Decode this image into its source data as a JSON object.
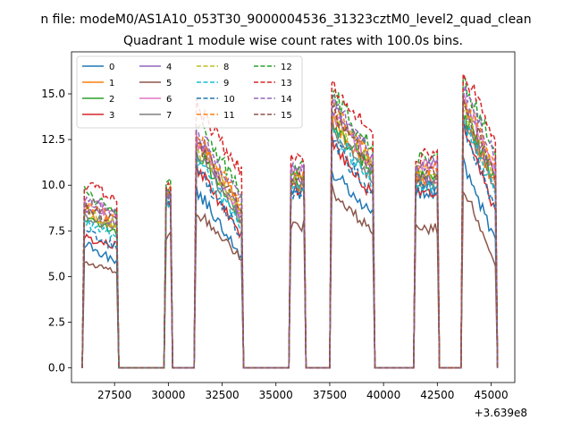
{
  "figure": {
    "suptitle": "n file: modeM0/AS1A10_053T30_9000004536_31323cztM0_level2_quad_clean",
    "title": "Quadrant 1 module wise count rates with 100.0s bins.",
    "x_offset_label": "+3.639e8"
  },
  "chart_data": {
    "type": "line",
    "title": "Quadrant 1 module wise count rates with 100.0s bins.",
    "xlabel": "",
    "ylabel": "",
    "x_offset": 363900000,
    "xlim": [
      25500,
      46100
    ],
    "ylim": [
      -0.8,
      17.3
    ],
    "x_ticks": [
      27500,
      30000,
      32500,
      35000,
      37500,
      40000,
      42500,
      45000
    ],
    "y_ticks": [
      0.0,
      2.5,
      5.0,
      7.5,
      10.0,
      12.5,
      15.0
    ],
    "x_tick_labels": [
      "27500",
      "30000",
      "32500",
      "35000",
      "37500",
      "40000",
      "42500",
      "45000"
    ],
    "y_tick_labels": [
      "0.0",
      "2.5",
      "5.0",
      "7.5",
      "10.0",
      "12.5",
      "15.0"
    ],
    "grid": false,
    "legend_placement": "top-left",
    "legend_columns": 4,
    "segments_description_x": [
      [
        26100,
        27600
      ],
      [
        29900,
        30100
      ],
      [
        31300,
        33400
      ],
      [
        35700,
        36300
      ],
      [
        37600,
        39500
      ],
      [
        41500,
        42500
      ],
      [
        43700,
        45200
      ]
    ],
    "series": [
      {
        "name": "0",
        "style": "solid",
        "color": "#1f77b4",
        "levels": [
          6.8,
          9.0,
          9.8,
          9.6,
          10.8,
          9.6,
          11.4
        ],
        "decay": [
          0.85,
          1.0,
          0.62,
          1.0,
          0.78,
          1.0,
          0.6
        ]
      },
      {
        "name": "1",
        "style": "solid",
        "color": "#ff7f0e",
        "levels": [
          8.6,
          9.6,
          12.6,
          10.0,
          13.6,
          10.2,
          14.0
        ],
        "decay": [
          0.9,
          1.0,
          0.7,
          1.0,
          0.8,
          1.0,
          0.7
        ]
      },
      {
        "name": "2",
        "style": "solid",
        "color": "#2ca02c",
        "levels": [
          8.2,
          9.5,
          12.0,
          10.2,
          13.4,
          10.6,
          14.0
        ],
        "decay": [
          0.9,
          1.0,
          0.68,
          1.0,
          0.8,
          1.0,
          0.72
        ]
      },
      {
        "name": "3",
        "style": "solid",
        "color": "#d62728",
        "levels": [
          7.2,
          9.0,
          11.0,
          9.8,
          12.4,
          9.6,
          13.6
        ],
        "decay": [
          0.92,
          1.0,
          0.66,
          1.0,
          0.76,
          1.0,
          0.62
        ]
      },
      {
        "name": "4",
        "style": "solid",
        "color": "#9467bd",
        "levels": [
          8.8,
          9.6,
          12.6,
          10.4,
          14.2,
          10.4,
          14.6
        ],
        "decay": [
          0.9,
          1.0,
          0.66,
          1.0,
          0.78,
          1.0,
          0.7
        ]
      },
      {
        "name": "5",
        "style": "solid",
        "color": "#8c564b",
        "levels": [
          5.8,
          7.2,
          8.6,
          7.8,
          9.8,
          7.6,
          10.0
        ],
        "decay": [
          0.9,
          1.0,
          0.7,
          1.0,
          0.75,
          1.0,
          0.55
        ]
      },
      {
        "name": "6",
        "style": "solid",
        "color": "#e377c2",
        "levels": [
          9.2,
          9.8,
          12.4,
          10.8,
          14.0,
          11.0,
          14.8
        ],
        "decay": [
          0.9,
          1.0,
          0.68,
          1.0,
          0.78,
          1.0,
          0.72
        ]
      },
      {
        "name": "7",
        "style": "solid",
        "color": "#7f7f7f",
        "levels": [
          8.4,
          9.4,
          11.8,
          10.0,
          13.2,
          10.2,
          13.8
        ],
        "decay": [
          0.9,
          1.0,
          0.68,
          1.0,
          0.78,
          1.0,
          0.7
        ]
      },
      {
        "name": "8",
        "style": "dashed",
        "color": "#bcbd22",
        "levels": [
          8.6,
          9.6,
          12.2,
          10.4,
          13.8,
          10.6,
          14.4
        ],
        "decay": [
          0.9,
          1.0,
          0.7,
          1.0,
          0.8,
          1.0,
          0.72
        ]
      },
      {
        "name": "9",
        "style": "dashed",
        "color": "#17becf",
        "levels": [
          8.0,
          9.2,
          11.4,
          9.8,
          13.0,
          10.0,
          13.6
        ],
        "decay": [
          0.9,
          1.0,
          0.68,
          1.0,
          0.78,
          1.0,
          0.7
        ]
      },
      {
        "name": "10",
        "style": "dashed",
        "color": "#1f77b4",
        "levels": [
          7.4,
          9.0,
          11.0,
          9.6,
          12.4,
          9.8,
          13.2
        ],
        "decay": [
          0.9,
          1.0,
          0.66,
          1.0,
          0.76,
          1.0,
          0.66
        ]
      },
      {
        "name": "11",
        "style": "dashed",
        "color": "#ff7f0e",
        "levels": [
          9.0,
          9.8,
          12.8,
          10.6,
          14.4,
          10.8,
          15.0
        ],
        "decay": [
          0.9,
          1.0,
          0.7,
          1.0,
          0.8,
          1.0,
          0.74
        ]
      },
      {
        "name": "12",
        "style": "dashed",
        "color": "#2ca02c",
        "levels": [
          9.6,
          10.0,
          13.4,
          11.0,
          15.0,
          11.4,
          15.6
        ],
        "decay": [
          0.9,
          1.0,
          0.72,
          1.0,
          0.8,
          1.0,
          0.76
        ]
      },
      {
        "name": "13",
        "style": "dashed",
        "color": "#d62728",
        "levels": [
          10.2,
          10.2,
          14.4,
          11.4,
          15.4,
          11.6,
          16.2
        ],
        "decay": [
          0.9,
          1.0,
          0.74,
          1.0,
          0.82,
          1.0,
          0.78
        ]
      },
      {
        "name": "14",
        "style": "dashed",
        "color": "#9467bd",
        "levels": [
          9.4,
          9.8,
          13.0,
          10.8,
          14.6,
          11.2,
          15.2
        ],
        "decay": [
          0.9,
          1.0,
          0.72,
          1.0,
          0.8,
          1.0,
          0.76
        ]
      },
      {
        "name": "15",
        "style": "dashed",
        "color": "#8c564b",
        "levels": [
          8.8,
          9.6,
          12.4,
          10.4,
          14.0,
          10.6,
          14.6
        ],
        "decay": [
          0.9,
          1.0,
          0.7,
          1.0,
          0.78,
          1.0,
          0.72
        ]
      }
    ]
  }
}
